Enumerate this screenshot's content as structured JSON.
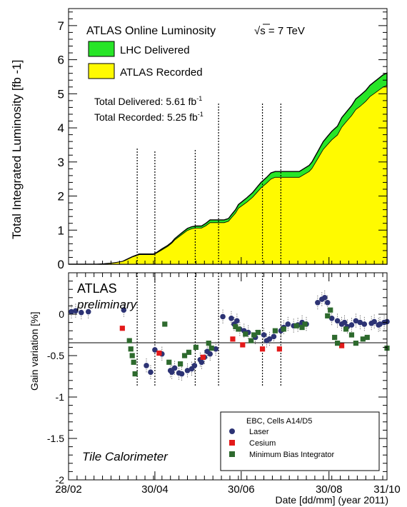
{
  "chart_data": [
    {
      "type": "area",
      "title": "ATLAS Online Luminosity",
      "energy_label": "√s = 7 TeV",
      "ylabel": "Total Integrated Luminosity [fb  -1]",
      "ylim": [
        0,
        7.5
      ],
      "yticks": [
        0,
        1,
        2,
        3,
        4,
        5,
        6,
        7
      ],
      "xlim_days": [
        0,
        225
      ],
      "x_unit": "days after 28/02 (year 2011)",
      "grid": false,
      "legend_position": "top-left",
      "series": [
        {
          "name": "LHC Delivered",
          "color": "#27e527",
          "x": [
            0,
            10,
            20,
            25,
            30,
            34,
            38,
            40,
            45,
            50,
            53,
            58,
            60,
            62,
            66,
            70,
            73,
            75,
            80,
            84,
            87,
            90,
            94,
            97,
            100,
            103,
            107,
            110,
            113,
            115,
            118,
            120,
            123,
            126,
            130,
            133,
            136,
            140,
            143,
            146,
            150,
            153,
            156,
            160,
            163,
            170,
            172,
            174,
            176,
            178,
            180,
            183,
            186,
            190,
            193,
            196,
            200,
            203,
            206,
            210,
            213,
            216,
            219,
            222,
            225
          ],
          "values": [
            0,
            0,
            0,
            0.01,
            0.03,
            0.05,
            0.08,
            0.12,
            0.22,
            0.3,
            0.3,
            0.3,
            0.3,
            0.34,
            0.45,
            0.55,
            0.65,
            0.75,
            0.92,
            1.05,
            1.1,
            1.12,
            1.12,
            1.2,
            1.3,
            1.3,
            1.3,
            1.3,
            1.34,
            1.45,
            1.6,
            1.75,
            1.85,
            1.95,
            2.1,
            2.25,
            2.4,
            2.55,
            2.68,
            2.72,
            2.72,
            2.72,
            2.72,
            2.72,
            2.72,
            2.9,
            3.0,
            3.15,
            3.3,
            3.45,
            3.6,
            3.75,
            3.9,
            4.05,
            4.3,
            4.45,
            4.65,
            4.85,
            4.95,
            5.1,
            5.25,
            5.35,
            5.45,
            5.55,
            5.61
          ]
        },
        {
          "name": "ATLAS Recorded",
          "color": "#fffa00",
          "x": [
            0,
            10,
            20,
            25,
            30,
            34,
            38,
            40,
            45,
            50,
            53,
            58,
            60,
            62,
            66,
            70,
            73,
            75,
            80,
            84,
            87,
            90,
            94,
            97,
            100,
            103,
            107,
            110,
            113,
            115,
            118,
            120,
            123,
            126,
            130,
            133,
            136,
            140,
            143,
            146,
            150,
            153,
            156,
            160,
            163,
            170,
            172,
            174,
            176,
            178,
            180,
            183,
            186,
            190,
            193,
            196,
            200,
            203,
            206,
            210,
            213,
            216,
            219,
            222,
            225
          ],
          "values": [
            0,
            0,
            0,
            0.01,
            0.03,
            0.05,
            0.08,
            0.11,
            0.21,
            0.28,
            0.28,
            0.28,
            0.28,
            0.32,
            0.42,
            0.52,
            0.62,
            0.71,
            0.87,
            0.99,
            1.04,
            1.06,
            1.06,
            1.13,
            1.22,
            1.22,
            1.22,
            1.22,
            1.26,
            1.36,
            1.5,
            1.64,
            1.73,
            1.82,
            1.96,
            2.1,
            2.24,
            2.38,
            2.5,
            2.55,
            2.55,
            2.55,
            2.55,
            2.55,
            2.55,
            2.72,
            2.81,
            2.95,
            3.09,
            3.23,
            3.37,
            3.51,
            3.65,
            3.79,
            4.02,
            4.17,
            4.36,
            4.54,
            4.63,
            4.78,
            4.92,
            5.01,
            5.1,
            5.19,
            5.25
          ]
        }
      ],
      "annotations": [
        "Total Delivered: 5.61 fb",
        "Total Recorded: 5.25 fb"
      ],
      "superscript": "-1"
    },
    {
      "type": "scatter",
      "title": "EBC, Cells A14/D5",
      "brand": "ATLAS",
      "brand_sub": "preliminary",
      "footer_label": "Tile Calorimeter",
      "ylabel": "Gain variation [%]",
      "xlabel": "Date [dd/mm] (year 2011)",
      "ylim": [
        -2,
        0.5
      ],
      "yticks": [
        0,
        -0.5,
        -1,
        -1.5,
        -2
      ],
      "ytick_labels": [
        "0",
        "-0.5",
        "-1",
        "-1.5",
        "-2"
      ],
      "xlim_days": [
        0,
        225
      ],
      "x_unit": "days after 28/02 (year 2011)",
      "xticks_days": [
        0,
        61,
        122,
        184,
        225
      ],
      "xtick_labels": [
        "28/02",
        "30/04",
        "30/06",
        "30/08",
        "31/10"
      ],
      "grid": false,
      "legend_position": "bottom-right",
      "series": [
        {
          "name": "Laser",
          "color": "#2c3374",
          "marker": "circle",
          "x": [
            2,
            5,
            9,
            14,
            39,
            55,
            58,
            61,
            66,
            72,
            73,
            75,
            78,
            80,
            84,
            87,
            89,
            93,
            94,
            96,
            98,
            100,
            104,
            109,
            115,
            117,
            119,
            121,
            124,
            127,
            132,
            138,
            140,
            142,
            145,
            150,
            152,
            155,
            159,
            162,
            165,
            168,
            176,
            179,
            181,
            183,
            186,
            190,
            193,
            195,
            197,
            200,
            203,
            206,
            209,
            214,
            216,
            219,
            220,
            223,
            225
          ],
          "y": [
            0.03,
            0.04,
            0.02,
            0.03,
            0.05,
            -0.62,
            -0.7,
            -0.43,
            -0.48,
            -0.68,
            -0.7,
            -0.65,
            -0.71,
            -0.72,
            -0.68,
            -0.66,
            -0.62,
            -0.55,
            -0.58,
            -0.52,
            -0.45,
            -0.48,
            -0.42,
            -0.03,
            -0.05,
            -0.12,
            -0.08,
            -0.18,
            -0.2,
            -0.22,
            -0.28,
            -0.25,
            -0.32,
            -0.3,
            -0.27,
            -0.2,
            -0.16,
            -0.12,
            -0.14,
            -0.13,
            -0.1,
            -0.12,
            0.14,
            0.18,
            0.2,
            0.14,
            -0.05,
            -0.08,
            -0.12,
            -0.1,
            -0.15,
            -0.13,
            -0.08,
            -0.1,
            -0.12,
            -0.11,
            -0.09,
            -0.13,
            -0.12,
            -0.1,
            -0.09
          ]
        },
        {
          "name": "Cesium",
          "color": "#e31a1a",
          "marker": "square",
          "x": [
            38,
            64,
            95,
            116,
            123,
            137,
            149,
            193
          ],
          "y": [
            -0.17,
            -0.47,
            -0.52,
            -0.3,
            -0.37,
            -0.42,
            -0.42,
            -0.38
          ]
        },
        {
          "name": "Minimum Bias Integrator",
          "color": "#2e6a2e",
          "marker": "square",
          "x": [
            43,
            44,
            45,
            46,
            47,
            68,
            71,
            79,
            82,
            85,
            90,
            99,
            101,
            118,
            120,
            125,
            129,
            131,
            134,
            146,
            152,
            161,
            165,
            167,
            183,
            185,
            188,
            190,
            196,
            200,
            203,
            208,
            211,
            225
          ],
          "y": [
            -0.32,
            -0.42,
            -0.5,
            -0.58,
            -0.72,
            -0.12,
            -0.58,
            -0.6,
            -0.5,
            -0.46,
            -0.4,
            -0.35,
            -0.41,
            -0.15,
            -0.18,
            -0.24,
            -0.32,
            -0.25,
            -0.22,
            -0.2,
            -0.18,
            -0.14,
            -0.16,
            -0.12,
            -0.02,
            0.05,
            -0.28,
            -0.35,
            -0.18,
            -0.25,
            -0.35,
            -0.3,
            -0.28,
            -0.41
          ]
        }
      ]
    }
  ]
}
